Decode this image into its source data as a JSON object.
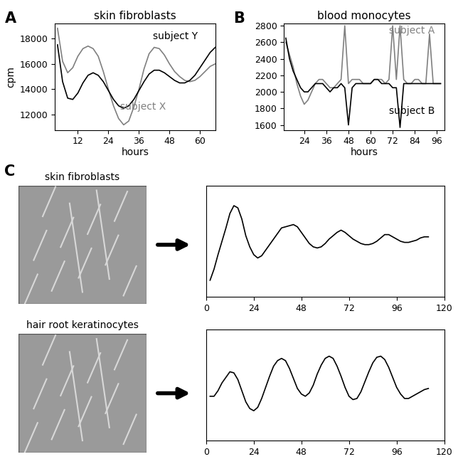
{
  "chart_data": [
    {
      "type": "line",
      "panel_label": "A",
      "title": "skin fibroblasts",
      "x_label": "hours",
      "y_label": "cpm",
      "xlim": [
        3,
        66
      ],
      "xticks": [
        12,
        24,
        36,
        48,
        60
      ],
      "ylim": [
        10800,
        19200
      ],
      "yticks": [
        12000,
        14000,
        16000,
        18000
      ],
      "x": [
        4,
        6,
        8,
        10,
        12,
        14,
        16,
        18,
        20,
        22,
        24,
        26,
        28,
        30,
        32,
        34,
        36,
        38,
        40,
        42,
        44,
        46,
        48,
        50,
        52,
        54,
        56,
        58,
        60,
        62,
        64,
        66
      ],
      "series": [
        {
          "name": "subject X",
          "color": "#808080",
          "values": [
            18800,
            16200,
            15300,
            15700,
            16600,
            17200,
            17400,
            17200,
            16600,
            15400,
            14000,
            12700,
            11700,
            11200,
            11500,
            12600,
            14000,
            15600,
            16800,
            17300,
            17200,
            16700,
            16000,
            15400,
            15000,
            14700,
            14600,
            14700,
            15000,
            15400,
            15800,
            16000
          ]
        },
        {
          "name": "subject Y",
          "color": "#000000",
          "values": [
            17500,
            14600,
            13300,
            13200,
            13700,
            14500,
            15100,
            15300,
            15100,
            14600,
            13900,
            13200,
            12700,
            12500,
            12700,
            13200,
            13900,
            14600,
            15200,
            15500,
            15500,
            15300,
            15000,
            14700,
            14500,
            14500,
            14700,
            15100,
            15700,
            16300,
            16900,
            17300
          ]
        }
      ]
    },
    {
      "type": "line",
      "panel_label": "B",
      "title": "blood monocytes",
      "x_label": "hours",
      "xlim": [
        13,
        100
      ],
      "xticks": [
        24,
        36,
        48,
        60,
        72,
        84,
        96
      ],
      "ylim": [
        1540,
        2830
      ],
      "yticks": [
        1600,
        1800,
        2000,
        2200,
        2400,
        2600,
        2800
      ],
      "x": [
        14,
        16,
        18,
        20,
        22,
        24,
        26,
        28,
        30,
        32,
        34,
        36,
        38,
        40,
        42,
        44,
        46,
        48,
        50,
        52,
        54,
        56,
        58,
        60,
        62,
        64,
        66,
        68,
        70,
        72,
        74,
        76,
        78,
        80,
        82,
        84,
        86,
        88,
        90,
        92,
        94,
        96,
        98
      ],
      "series": [
        {
          "name": "subject A",
          "color": "#808080",
          "values": [
            2600,
            2450,
            2300,
            2100,
            1950,
            1850,
            1900,
            2000,
            2100,
            2150,
            2150,
            2100,
            2050,
            2050,
            2100,
            2150,
            2800,
            2100,
            2150,
            2150,
            2150,
            2100,
            2100,
            2100,
            2150,
            2150,
            2150,
            2100,
            2150,
            2800,
            2150,
            2800,
            2150,
            2100,
            2100,
            2150,
            2150,
            2100,
            2100,
            2700,
            2100,
            2100,
            2100
          ]
        },
        {
          "name": "subject B",
          "color": "#000000",
          "values": [
            2650,
            2400,
            2250,
            2150,
            2050,
            2000,
            2000,
            2050,
            2100,
            2100,
            2100,
            2050,
            2000,
            2050,
            2050,
            2100,
            2050,
            1600,
            2050,
            2100,
            2100,
            2100,
            2100,
            2100,
            2150,
            2150,
            2100,
            2100,
            2100,
            2050,
            2050,
            1570,
            2100,
            2100,
            2100,
            2100,
            2100,
            2100,
            2100,
            2100,
            2100,
            2100,
            2100
          ]
        }
      ]
    },
    {
      "type": "line",
      "panel_label": "C",
      "tick_labels": "x",
      "xlim": [
        0,
        120
      ],
      "xticks": [
        0,
        24,
        48,
        72,
        96,
        120
      ],
      "ylim": [
        0,
        100
      ],
      "x": [
        2,
        4,
        6,
        8,
        10,
        12,
        14,
        16,
        18,
        20,
        22,
        24,
        26,
        28,
        30,
        32,
        34,
        36,
        38,
        40,
        42,
        44,
        46,
        48,
        50,
        52,
        54,
        56,
        58,
        60,
        62,
        64,
        66,
        68,
        70,
        72,
        74,
        76,
        78,
        80,
        82,
        84,
        86,
        88,
        90,
        92,
        94,
        96,
        98,
        100,
        102,
        104,
        106,
        108,
        110,
        112
      ],
      "series": [
        {
          "color": "#000000",
          "values": [
            15,
            25,
            38,
            50,
            62,
            75,
            82,
            80,
            70,
            55,
            45,
            38,
            35,
            37,
            42,
            47,
            52,
            57,
            62,
            63,
            64,
            65,
            63,
            58,
            53,
            48,
            45,
            44,
            45,
            48,
            52,
            55,
            58,
            60,
            58,
            55,
            52,
            50,
            48,
            47,
            47,
            48,
            50,
            53,
            56,
            56,
            54,
            52,
            50,
            49,
            49,
            50,
            51,
            53,
            54,
            54
          ]
        }
      ]
    },
    {
      "type": "line",
      "tick_labels": "x",
      "xlim": [
        0,
        120
      ],
      "xticks": [
        0,
        24,
        48,
        72,
        96,
        120
      ],
      "ylim": [
        0,
        100
      ],
      "x": [
        2,
        4,
        6,
        8,
        10,
        12,
        14,
        16,
        18,
        20,
        22,
        24,
        26,
        28,
        30,
        32,
        34,
        36,
        38,
        40,
        42,
        44,
        46,
        48,
        50,
        52,
        54,
        56,
        58,
        60,
        62,
        64,
        66,
        68,
        70,
        72,
        74,
        76,
        78,
        80,
        82,
        84,
        86,
        88,
        90,
        92,
        94,
        96,
        98,
        100,
        102,
        104,
        106,
        108,
        110,
        112
      ],
      "series": [
        {
          "color": "#000000",
          "values": [
            40,
            40,
            45,
            52,
            57,
            62,
            61,
            55,
            45,
            35,
            29,
            27,
            30,
            38,
            48,
            58,
            67,
            72,
            74,
            72,
            65,
            56,
            47,
            42,
            40,
            43,
            50,
            60,
            68,
            74,
            76,
            74,
            67,
            58,
            48,
            40,
            37,
            38,
            44,
            53,
            62,
            70,
            75,
            76,
            73,
            66,
            57,
            48,
            42,
            38,
            38,
            40,
            42,
            44,
            46,
            47
          ]
        }
      ]
    }
  ],
  "images": [
    {
      "label": "skin fibroblasts"
    },
    {
      "label": "hair root keratinocytes"
    }
  ]
}
